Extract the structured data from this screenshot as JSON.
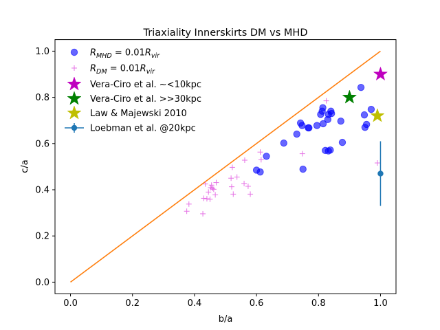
{
  "chart_data": {
    "type": "scatter",
    "title": "Triaxiality Innerskirts DM vs MHD",
    "xlabel": "b/a",
    "ylabel": "c/a",
    "xlim": [
      -0.05,
      1.05
    ],
    "ylim": [
      -0.05,
      1.05
    ],
    "xticks": [
      0.0,
      0.2,
      0.4,
      0.6,
      0.8,
      1.0
    ],
    "xtick_labels": [
      "0.0",
      "0.2",
      "0.4",
      "0.6",
      "0.8",
      "1.0"
    ],
    "yticks": [
      0.0,
      0.2,
      0.4,
      0.6,
      0.8,
      1.0
    ],
    "ytick_labels": [
      "0.0",
      "0.2",
      "0.4",
      "0.6",
      "0.8",
      "1.0"
    ],
    "grid": false,
    "legend_position": "upper-left",
    "reference_line": {
      "x": [
        0.0,
        1.0
      ],
      "y": [
        0.0,
        1.0
      ],
      "color": "#ff7f0e"
    },
    "series": [
      {
        "name": "R_{MHD} = 0.01R_{vir}",
        "legend_main": "R",
        "legend_sub": "MHD",
        "legend_mid": " = 0.01",
        "legend_main2": "R",
        "legend_sub2": "vir",
        "marker": "circle",
        "color": "#0000ff",
        "points": [
          [
            0.6,
            0.485
          ],
          [
            0.612,
            0.477
          ],
          [
            0.632,
            0.545
          ],
          [
            0.688,
            0.602
          ],
          [
            0.73,
            0.641
          ],
          [
            0.742,
            0.689
          ],
          [
            0.747,
            0.678
          ],
          [
            0.75,
            0.489
          ],
          [
            0.767,
            0.668
          ],
          [
            0.769,
            0.668
          ],
          [
            0.795,
            0.678
          ],
          [
            0.807,
            0.726
          ],
          [
            0.812,
            0.74
          ],
          [
            0.814,
            0.755
          ],
          [
            0.815,
            0.686
          ],
          [
            0.822,
            0.57
          ],
          [
            0.83,
            0.704
          ],
          [
            0.832,
            0.726
          ],
          [
            0.832,
            0.568
          ],
          [
            0.838,
            0.572
          ],
          [
            0.84,
            0.74
          ],
          [
            0.842,
            0.73
          ],
          [
            0.872,
            0.697
          ],
          [
            0.877,
            0.605
          ],
          [
            0.937,
            0.843
          ],
          [
            0.948,
            0.724
          ],
          [
            0.95,
            0.67
          ],
          [
            0.955,
            0.683
          ],
          [
            0.97,
            0.748
          ]
        ]
      },
      {
        "name": "R_{DM} = 0.01R_{vir}",
        "legend_main": "R",
        "legend_sub": "DM",
        "legend_mid": " = 0.01",
        "legend_main2": "R",
        "legend_sub2": "vir",
        "marker": "plus",
        "color": "#dd44dd",
        "points": [
          [
            0.375,
            0.307
          ],
          [
            0.382,
            0.338
          ],
          [
            0.427,
            0.296
          ],
          [
            0.43,
            0.363
          ],
          [
            0.435,
            0.425
          ],
          [
            0.44,
            0.361
          ],
          [
            0.445,
            0.39
          ],
          [
            0.45,
            0.359
          ],
          [
            0.452,
            0.409
          ],
          [
            0.455,
            0.42
          ],
          [
            0.458,
            0.406
          ],
          [
            0.462,
            0.402
          ],
          [
            0.467,
            0.378
          ],
          [
            0.47,
            0.431
          ],
          [
            0.518,
            0.45
          ],
          [
            0.52,
            0.413
          ],
          [
            0.522,
            0.497
          ],
          [
            0.525,
            0.381
          ],
          [
            0.537,
            0.455
          ],
          [
            0.56,
            0.427
          ],
          [
            0.562,
            0.528
          ],
          [
            0.573,
            0.415
          ],
          [
            0.58,
            0.381
          ],
          [
            0.612,
            0.563
          ],
          [
            0.615,
            0.53
          ],
          [
            0.748,
            0.556
          ],
          [
            0.825,
            0.785
          ],
          [
            0.99,
            0.516
          ]
        ]
      },
      {
        "name": "Vera-Ciro et al. ~<10kpc",
        "marker": "star",
        "color": "#bf00bf",
        "points": [
          [
            1.0,
            0.9
          ]
        ]
      },
      {
        "name": "Vera-Ciro et al. >>30kpc",
        "marker": "star",
        "color": "#008000",
        "points": [
          [
            0.9,
            0.8
          ]
        ]
      },
      {
        "name": "Law & Majewski 2010",
        "marker": "star",
        "color": "#bfbf00",
        "points": [
          [
            0.99,
            0.72
          ]
        ]
      },
      {
        "name": "Loebman et al. @20kpc",
        "marker": "errorbar",
        "color": "#1f77b4",
        "points": [
          [
            1.0,
            0.47
          ]
        ],
        "yerr": [
          0.14
        ]
      }
    ]
  }
}
